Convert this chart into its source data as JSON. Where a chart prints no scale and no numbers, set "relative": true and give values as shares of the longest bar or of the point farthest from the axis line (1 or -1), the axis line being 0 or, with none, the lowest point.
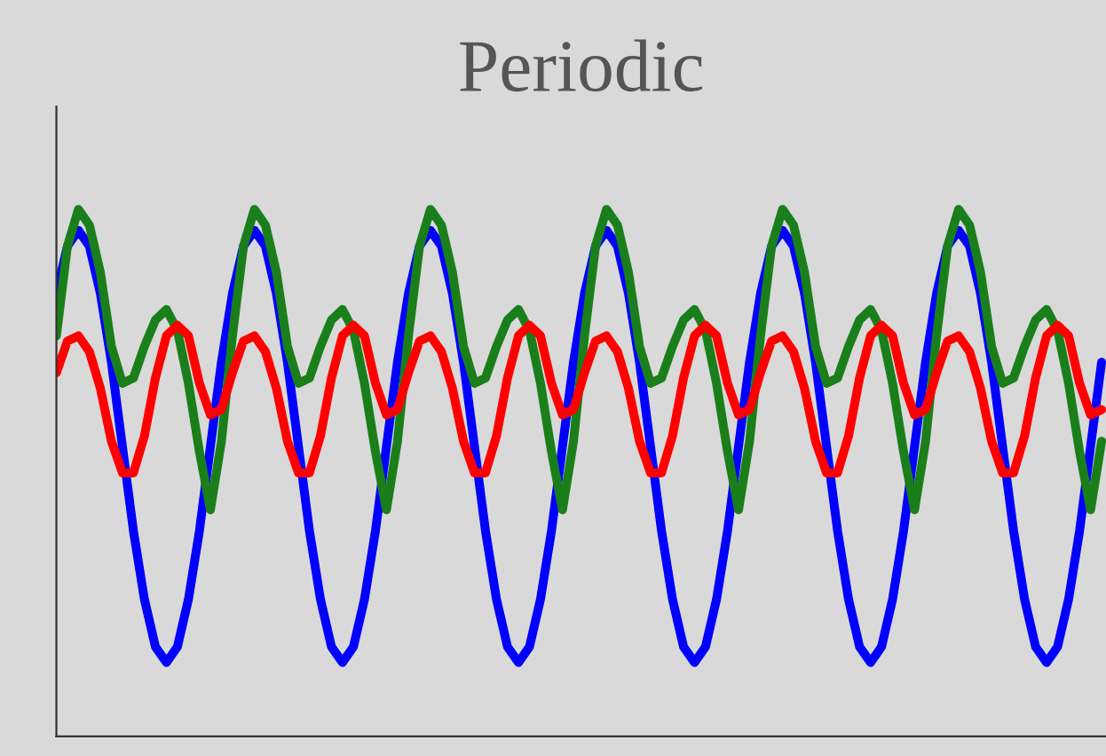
{
  "chart_data": {
    "type": "line",
    "title": "Periodic",
    "relative": true,
    "categories": [
      null,
      null,
      null,
      null,
      null,
      null,
      null,
      null,
      null,
      null,
      null,
      null,
      null,
      null,
      null,
      null,
      null,
      null,
      null,
      null,
      null,
      null,
      null,
      null,
      null,
      null,
      null,
      null,
      null,
      null,
      null,
      null,
      null,
      null,
      null,
      null,
      null,
      null,
      null,
      null,
      null,
      null,
      null,
      null,
      null,
      null,
      null,
      null,
      null,
      null,
      null,
      null,
      null,
      null,
      null,
      null,
      null,
      null,
      null,
      null,
      null,
      null,
      null,
      null,
      null,
      null,
      null,
      null,
      null,
      null,
      null,
      null,
      null,
      null,
      null,
      null,
      null,
      null,
      null,
      null,
      null,
      null,
      null,
      null,
      null,
      null,
      null,
      null,
      null,
      null,
      null,
      null,
      null,
      null,
      null,
      null
    ],
    "series": [
      {
        "color": "#0000ff",
        "values": [
          0.84,
          0.93,
          0.96,
          0.93,
          0.84,
          0.71,
          0.55,
          0.39,
          0.26,
          0.17,
          0.14,
          0.17,
          0.26,
          0.39,
          0.55,
          0.71,
          0.84,
          0.93,
          0.96,
          0.93,
          0.84,
          0.71,
          0.55,
          0.39,
          0.26,
          0.17,
          0.14,
          0.17,
          0.26,
          0.39,
          0.55,
          0.71,
          0.84,
          0.93,
          0.96,
          0.93,
          0.84,
          0.71,
          0.55,
          0.39,
          0.26,
          0.17,
          0.14,
          0.17,
          0.26,
          0.39,
          0.55,
          0.71,
          0.84,
          0.93,
          0.96,
          0.93,
          0.84,
          0.71,
          0.55,
          0.39,
          0.26,
          0.17,
          0.14,
          0.17,
          0.26,
          0.39,
          0.55,
          0.71,
          0.84,
          0.93,
          0.96,
          0.93,
          0.84,
          0.71,
          0.55,
          0.39,
          0.26,
          0.17,
          0.14,
          0.17,
          0.26,
          0.39,
          0.55,
          0.71,
          0.84,
          0.93,
          0.96,
          0.93,
          0.84,
          0.71,
          0.55,
          0.39,
          0.26,
          0.17,
          0.14,
          0.17,
          0.26,
          0.39,
          0.55,
          0.71
        ]
      },
      {
        "color": "#1a7f1a",
        "values": [
          0.76,
          0.93,
          1.0,
          0.97,
          0.88,
          0.74,
          0.67,
          0.68,
          0.74,
          0.79,
          0.81,
          0.77,
          0.67,
          0.54,
          0.43,
          0.56,
          0.76,
          0.93,
          1.0,
          0.97,
          0.88,
          0.74,
          0.67,
          0.68,
          0.74,
          0.79,
          0.81,
          0.77,
          0.67,
          0.54,
          0.43,
          0.56,
          0.76,
          0.93,
          1.0,
          0.97,
          0.88,
          0.74,
          0.67,
          0.68,
          0.74,
          0.79,
          0.81,
          0.77,
          0.67,
          0.54,
          0.43,
          0.56,
          0.76,
          0.93,
          1.0,
          0.97,
          0.88,
          0.74,
          0.67,
          0.68,
          0.74,
          0.79,
          0.81,
          0.77,
          0.67,
          0.54,
          0.43,
          0.56,
          0.76,
          0.93,
          1.0,
          0.97,
          0.88,
          0.74,
          0.67,
          0.68,
          0.74,
          0.79,
          0.81,
          0.77,
          0.67,
          0.54,
          0.43,
          0.56,
          0.76,
          0.93,
          1.0,
          0.97,
          0.88,
          0.74,
          0.67,
          0.68,
          0.74,
          0.79,
          0.81,
          0.77,
          0.67,
          0.54,
          0.43,
          0.56
        ]
      },
      {
        "color": "#ff0000",
        "values": [
          0.69,
          0.75,
          0.76,
          0.73,
          0.66,
          0.56,
          0.5,
          0.5,
          0.57,
          0.68,
          0.76,
          0.78,
          0.76,
          0.67,
          0.61,
          0.62,
          0.69,
          0.75,
          0.76,
          0.73,
          0.66,
          0.56,
          0.5,
          0.5,
          0.57,
          0.68,
          0.76,
          0.78,
          0.76,
          0.67,
          0.61,
          0.62,
          0.69,
          0.75,
          0.76,
          0.73,
          0.66,
          0.56,
          0.5,
          0.5,
          0.57,
          0.68,
          0.76,
          0.78,
          0.76,
          0.67,
          0.61,
          0.62,
          0.69,
          0.75,
          0.76,
          0.73,
          0.66,
          0.56,
          0.5,
          0.5,
          0.57,
          0.68,
          0.76,
          0.78,
          0.76,
          0.67,
          0.61,
          0.62,
          0.69,
          0.75,
          0.76,
          0.73,
          0.66,
          0.56,
          0.5,
          0.5,
          0.57,
          0.68,
          0.76,
          0.78,
          0.76,
          0.67,
          0.61,
          0.62,
          0.69,
          0.75,
          0.76,
          0.73,
          0.66,
          0.56,
          0.5,
          0.5,
          0.57,
          0.68,
          0.76,
          0.78,
          0.76,
          0.67,
          0.61,
          0.62
        ]
      }
    ]
  }
}
